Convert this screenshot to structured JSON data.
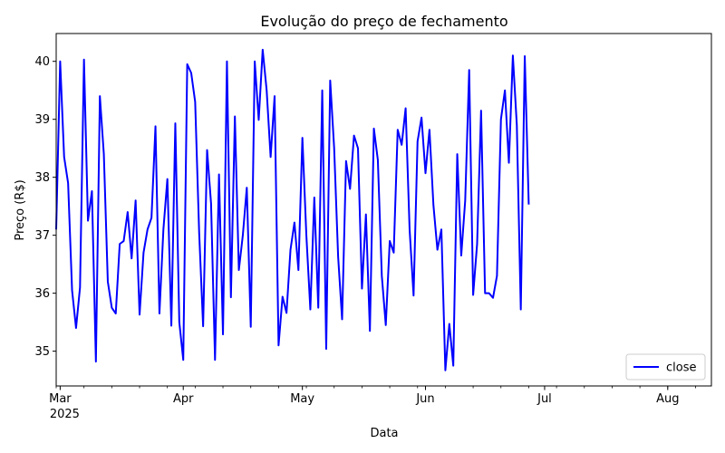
{
  "chart_data": {
    "type": "line",
    "title": "Evolução do preço de fechamento",
    "xlabel": "Data",
    "ylabel": "Preço (R$)",
    "x_range": [
      "2025-02-28",
      "2025-08-12"
    ],
    "ylim": [
      34.4,
      40.48
    ],
    "grid": false,
    "legend_position": "lower-right",
    "x_ticks": [
      {
        "date": "2025-03-01",
        "label": "Mar",
        "sublabel": "2025"
      },
      {
        "date": "2025-04-01",
        "label": "Apr",
        "sublabel": ""
      },
      {
        "date": "2025-05-01",
        "label": "May",
        "sublabel": ""
      },
      {
        "date": "2025-06-01",
        "label": "Jun",
        "sublabel": ""
      },
      {
        "date": "2025-07-01",
        "label": "Jul",
        "sublabel": ""
      },
      {
        "date": "2025-08-01",
        "label": "Aug",
        "sublabel": ""
      }
    ],
    "y_ticks": [
      35,
      36,
      37,
      38,
      39,
      40
    ],
    "series": [
      {
        "name": "close",
        "color": "#0000ff",
        "points": [
          [
            "2025-02-28",
            37.1
          ],
          [
            "2025-03-01",
            40.0
          ],
          [
            "2025-03-02",
            38.35
          ],
          [
            "2025-03-03",
            37.9
          ],
          [
            "2025-03-04",
            36.05
          ],
          [
            "2025-03-05",
            35.4
          ],
          [
            "2025-03-06",
            36.1
          ],
          [
            "2025-03-07",
            40.03
          ],
          [
            "2025-03-08",
            37.25
          ],
          [
            "2025-03-09",
            37.76
          ],
          [
            "2025-03-10",
            34.82
          ],
          [
            "2025-03-11",
            39.4
          ],
          [
            "2025-03-12",
            38.4
          ],
          [
            "2025-03-13",
            36.2
          ],
          [
            "2025-03-14",
            35.75
          ],
          [
            "2025-03-15",
            35.65
          ],
          [
            "2025-03-16",
            36.85
          ],
          [
            "2025-03-17",
            36.9
          ],
          [
            "2025-03-18",
            37.4
          ],
          [
            "2025-03-19",
            36.6
          ],
          [
            "2025-03-20",
            37.6
          ],
          [
            "2025-03-21",
            35.63
          ],
          [
            "2025-03-22",
            36.7
          ],
          [
            "2025-03-23",
            37.1
          ],
          [
            "2025-03-24",
            37.3
          ],
          [
            "2025-03-25",
            38.88
          ],
          [
            "2025-03-26",
            35.65
          ],
          [
            "2025-03-27",
            37.1
          ],
          [
            "2025-03-28",
            37.97
          ],
          [
            "2025-03-29",
            35.44
          ],
          [
            "2025-03-30",
            38.93
          ],
          [
            "2025-03-31",
            35.5
          ],
          [
            "2025-04-01",
            34.85
          ],
          [
            "2025-04-02",
            39.95
          ],
          [
            "2025-04-03",
            39.8
          ],
          [
            "2025-04-04",
            39.3
          ],
          [
            "2025-04-05",
            37.05
          ],
          [
            "2025-04-06",
            35.43
          ],
          [
            "2025-04-07",
            38.47
          ],
          [
            "2025-04-08",
            37.55
          ],
          [
            "2025-04-09",
            34.85
          ],
          [
            "2025-04-10",
            38.05
          ],
          [
            "2025-04-11",
            35.29
          ],
          [
            "2025-04-12",
            40.0
          ],
          [
            "2025-04-13",
            35.93
          ],
          [
            "2025-04-14",
            39.05
          ],
          [
            "2025-04-15",
            36.4
          ],
          [
            "2025-04-16",
            37.0
          ],
          [
            "2025-04-17",
            37.82
          ],
          [
            "2025-04-18",
            35.42
          ],
          [
            "2025-04-19",
            40.0
          ],
          [
            "2025-04-20",
            38.99
          ],
          [
            "2025-04-21",
            40.2
          ],
          [
            "2025-04-22",
            39.5
          ],
          [
            "2025-04-23",
            38.35
          ],
          [
            "2025-04-24",
            39.4
          ],
          [
            "2025-04-25",
            35.1
          ],
          [
            "2025-04-26",
            35.94
          ],
          [
            "2025-04-27",
            35.66
          ],
          [
            "2025-04-28",
            36.75
          ],
          [
            "2025-04-29",
            37.22
          ],
          [
            "2025-04-30",
            36.4
          ],
          [
            "2025-05-01",
            38.68
          ],
          [
            "2025-05-02",
            37.0
          ],
          [
            "2025-05-03",
            35.72
          ],
          [
            "2025-05-04",
            37.65
          ],
          [
            "2025-05-05",
            35.75
          ],
          [
            "2025-05-06",
            39.5
          ],
          [
            "2025-05-07",
            35.04
          ],
          [
            "2025-05-08",
            39.67
          ],
          [
            "2025-05-09",
            38.5
          ],
          [
            "2025-05-10",
            36.63
          ],
          [
            "2025-05-11",
            35.55
          ],
          [
            "2025-05-12",
            38.28
          ],
          [
            "2025-05-13",
            37.8
          ],
          [
            "2025-05-14",
            38.72
          ],
          [
            "2025-05-15",
            38.5
          ],
          [
            "2025-05-16",
            36.08
          ],
          [
            "2025-05-17",
            37.36
          ],
          [
            "2025-05-18",
            35.35
          ],
          [
            "2025-05-19",
            38.84
          ],
          [
            "2025-05-20",
            38.3
          ],
          [
            "2025-05-21",
            36.3
          ],
          [
            "2025-05-22",
            35.45
          ],
          [
            "2025-05-23",
            36.9
          ],
          [
            "2025-05-24",
            36.7
          ],
          [
            "2025-05-25",
            38.82
          ],
          [
            "2025-05-26",
            38.56
          ],
          [
            "2025-05-27",
            39.19
          ],
          [
            "2025-05-28",
            37.1
          ],
          [
            "2025-05-29",
            35.96
          ],
          [
            "2025-05-30",
            38.62
          ],
          [
            "2025-05-31",
            39.03
          ],
          [
            "2025-06-01",
            38.07
          ],
          [
            "2025-06-02",
            38.82
          ],
          [
            "2025-06-03",
            37.52
          ],
          [
            "2025-06-04",
            36.75
          ],
          [
            "2025-06-05",
            37.1
          ],
          [
            "2025-06-06",
            34.67
          ],
          [
            "2025-06-07",
            35.47
          ],
          [
            "2025-06-08",
            34.75
          ],
          [
            "2025-06-09",
            38.4
          ],
          [
            "2025-06-10",
            36.65
          ],
          [
            "2025-06-11",
            37.6
          ],
          [
            "2025-06-12",
            39.85
          ],
          [
            "2025-06-13",
            35.97
          ],
          [
            "2025-06-14",
            36.85
          ],
          [
            "2025-06-15",
            39.15
          ],
          [
            "2025-06-16",
            36.0
          ],
          [
            "2025-06-17",
            36.0
          ],
          [
            "2025-06-18",
            35.92
          ],
          [
            "2025-06-19",
            36.3
          ],
          [
            "2025-06-20",
            39.0
          ],
          [
            "2025-06-21",
            39.5
          ],
          [
            "2025-06-22",
            38.25
          ],
          [
            "2025-06-23",
            40.1
          ],
          [
            "2025-06-24",
            38.9
          ],
          [
            "2025-06-25",
            35.72
          ],
          [
            "2025-06-26",
            40.09
          ],
          [
            "2025-06-27",
            37.53
          ]
        ]
      }
    ]
  }
}
